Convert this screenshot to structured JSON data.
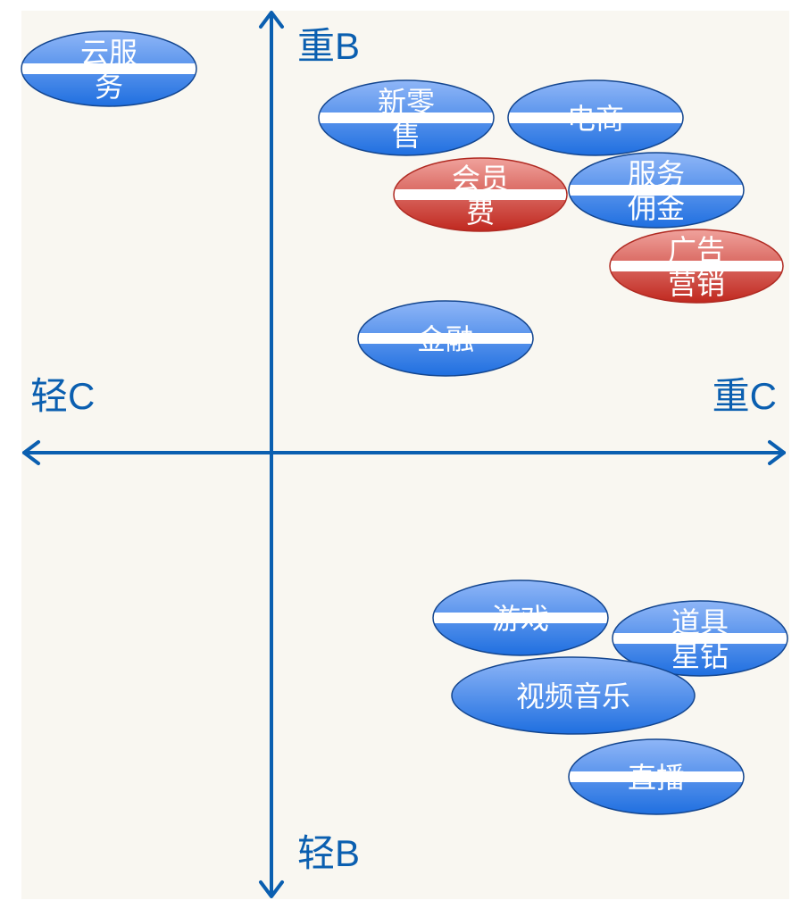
{
  "axes": {
    "top_label": "重B",
    "bottom_label": "轻B",
    "left_label": "轻C",
    "right_label": "重C",
    "color": "#0b5fb0"
  },
  "bubbles": [
    {
      "id": "cloud-service",
      "lines": [
        "云服",
        "务"
      ],
      "style": "blue"
    },
    {
      "id": "new-retail",
      "lines": [
        "新零",
        "售"
      ],
      "style": "blue"
    },
    {
      "id": "ecommerce",
      "lines": [
        "电商"
      ],
      "style": "blue"
    },
    {
      "id": "membership-fee",
      "lines": [
        "会员",
        "费"
      ],
      "style": "red"
    },
    {
      "id": "service-commission",
      "lines": [
        "服务",
        "佣金"
      ],
      "style": "blue"
    },
    {
      "id": "ad-marketing",
      "lines": [
        "广告",
        "营销"
      ],
      "style": "red"
    },
    {
      "id": "finance",
      "lines": [
        "金融"
      ],
      "style": "blue"
    },
    {
      "id": "games",
      "lines": [
        "游戏"
      ],
      "style": "blue"
    },
    {
      "id": "virtual-items",
      "lines": [
        "道具",
        "星钻"
      ],
      "style": "blue"
    },
    {
      "id": "video-music",
      "lines": [
        "视频音乐"
      ],
      "style": "blue"
    },
    {
      "id": "live-streaming",
      "lines": [
        "直播"
      ],
      "style": "blue"
    }
  ],
  "colors": {
    "panel_background": "#f9f7f1",
    "blue_light": "#8fb6f7",
    "blue_dark": "#1f6fe0",
    "blue_stroke": "#14468f",
    "red_light": "#f0a29c",
    "red_dark": "#c0281f",
    "red_stroke": "#b02a22"
  }
}
